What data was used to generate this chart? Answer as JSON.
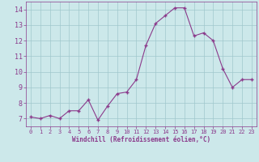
{
  "x": [
    0,
    1,
    2,
    3,
    4,
    5,
    6,
    7,
    8,
    9,
    10,
    11,
    12,
    13,
    14,
    15,
    16,
    17,
    18,
    19,
    20,
    21,
    22,
    23
  ],
  "y": [
    7.1,
    7.0,
    7.2,
    7.0,
    7.5,
    7.5,
    8.2,
    6.9,
    7.8,
    8.6,
    8.7,
    9.5,
    11.7,
    13.1,
    13.6,
    14.1,
    14.1,
    12.3,
    12.5,
    12.0,
    10.2,
    9.0,
    9.5,
    9.5
  ],
  "line_color": "#8b3a8b",
  "marker_color": "#8b3a8b",
  "bg_color": "#cce8ea",
  "grid_color": "#a0c8cc",
  "xlabel": "Windchill (Refroidissement éolien,°C)",
  "xlabel_color": "#8b3a8b",
  "tick_color": "#8b3a8b",
  "ylim": [
    6.5,
    14.5
  ],
  "xlim": [
    -0.5,
    23.5
  ],
  "yticks": [
    7,
    8,
    9,
    10,
    11,
    12,
    13,
    14
  ],
  "xticks": [
    0,
    1,
    2,
    3,
    4,
    5,
    6,
    7,
    8,
    9,
    10,
    11,
    12,
    13,
    14,
    15,
    16,
    17,
    18,
    19,
    20,
    21,
    22,
    23
  ]
}
